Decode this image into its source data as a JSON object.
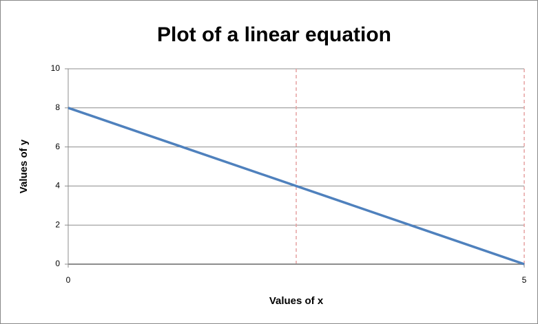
{
  "chart_data": {
    "type": "line",
    "title": "Plot of a linear equation",
    "x_label": "Values of x",
    "y_label": "Values of y",
    "x": [
      0,
      5
    ],
    "series": [
      {
        "name": "y",
        "color": "#4f81bd",
        "values": [
          8,
          0
        ]
      }
    ],
    "xlim": [
      0,
      5
    ],
    "xticks": [
      0,
      5
    ],
    "ylim": [
      0,
      10
    ],
    "yticks": [
      0,
      2,
      4,
      6,
      8,
      10
    ],
    "grid": true,
    "x_dashed_lines": [
      2.5,
      5
    ],
    "x_dashed_color": "#e6a0a0"
  }
}
